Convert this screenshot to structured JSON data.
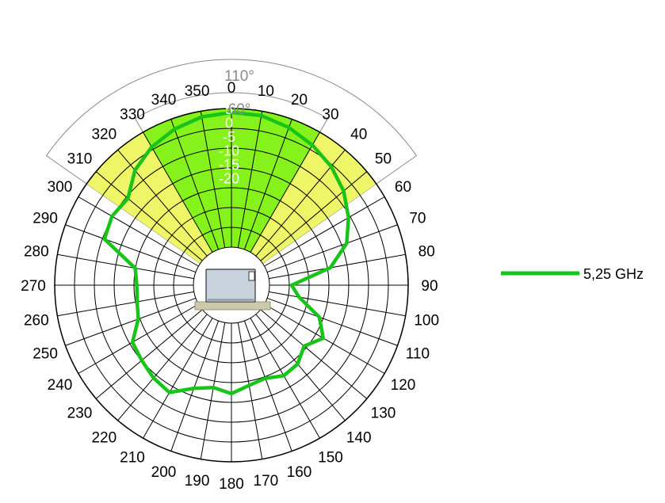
{
  "chart_data": {
    "type": "polar-line",
    "angle_unit": "degrees",
    "angle_ticks": [
      0,
      10,
      20,
      30,
      40,
      50,
      60,
      70,
      80,
      90,
      100,
      110,
      120,
      130,
      140,
      150,
      160,
      170,
      180,
      190,
      200,
      210,
      220,
      230,
      240,
      250,
      260,
      270,
      280,
      290,
      300,
      310,
      320,
      330,
      340,
      350
    ],
    "angle_tick_labels": [
      "0",
      "10",
      "20",
      "30",
      "40",
      "50",
      "60",
      "70",
      "80",
      "90",
      "100",
      "110",
      "120",
      "130",
      "140",
      "150",
      "160",
      "170",
      "180",
      "190",
      "200",
      "210",
      "220",
      "230",
      "240",
      "250",
      "260",
      "270",
      "280",
      "290",
      "300",
      "310",
      "320",
      "330",
      "340",
      "350"
    ],
    "radial_ticks": [
      5,
      0,
      -5,
      -10,
      -15,
      -20
    ],
    "radial_tick_labels": [
      "5",
      "0",
      "-5",
      "-10",
      "-15",
      "-20"
    ],
    "radial_range": [
      -45,
      5
    ],
    "sector_labels": [
      "110°",
      "60°"
    ],
    "sectors": [
      {
        "label": "110°",
        "start": -55,
        "end": 55,
        "color": "#eef566"
      },
      {
        "label": "60°",
        "start": -30,
        "end": 30,
        "color": "#86f21c"
      }
    ],
    "series": [
      {
        "name": "5,25 GHz",
        "color": "#18c418",
        "angles": [
          0,
          10,
          20,
          30,
          40,
          50,
          60,
          70,
          80,
          90,
          100,
          110,
          120,
          130,
          140,
          150,
          160,
          170,
          180,
          190,
          200,
          210,
          220,
          230,
          240,
          250,
          260,
          270,
          280,
          290,
          300,
          310,
          320,
          330,
          340,
          350
        ],
        "values": [
          3.6,
          3.4,
          1.8,
          -0.4,
          -2.8,
          -5.9,
          -10,
          -14.5,
          -22.5,
          -37,
          -34,
          -25,
          -20.5,
          -24.5,
          -21.6,
          -21,
          -23,
          -22,
          -19.6,
          -21.2,
          -19.1,
          -14,
          -15,
          -16.5,
          -17.5,
          -23,
          -24.2,
          -24.6,
          -23.5,
          -10,
          -9,
          -10,
          -4.6,
          -1.2,
          1.2,
          2.9
        ]
      }
    ],
    "grid": true,
    "legend_position": "right"
  }
}
